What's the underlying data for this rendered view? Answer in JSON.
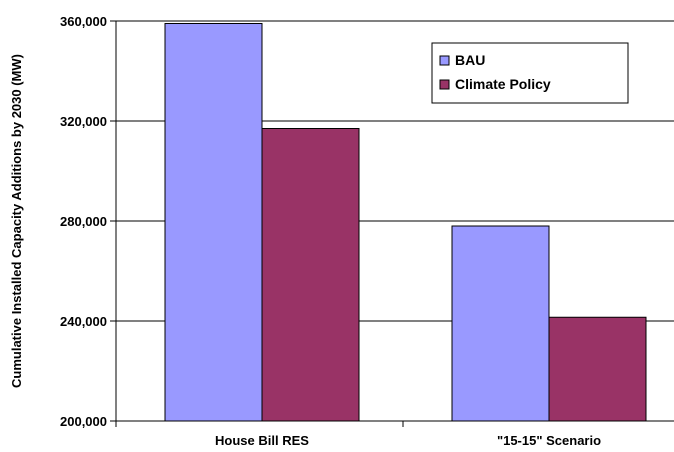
{
  "chart_data": {
    "type": "bar",
    "title": "",
    "xlabel": "",
    "ylabel": "Cumulative Installed Capacity Additions by 2030 (MW)",
    "categories": [
      "House Bill RES",
      "\"15-15\" Scenario"
    ],
    "series": [
      {
        "name": "BAU",
        "values": [
          359000,
          278000
        ],
        "color": "#9999ff"
      },
      {
        "name": "Climate Policy",
        "values": [
          317000,
          241500
        ],
        "color": "#993366"
      }
    ],
    "ylim": [
      200000,
      360000
    ],
    "yticks": [
      200000,
      240000,
      280000,
      320000,
      360000
    ],
    "ytick_labels": [
      "200,000",
      "240,000",
      "280,000",
      "320,000",
      "360,000"
    ],
    "grid": true,
    "legend_position": "top-right"
  }
}
